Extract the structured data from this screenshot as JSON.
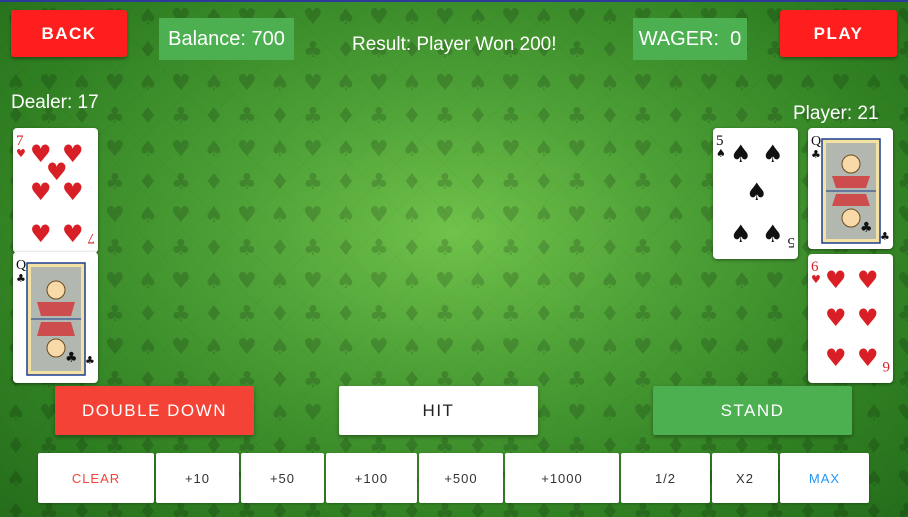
{
  "header": {
    "back_label": "BACK",
    "play_label": "PLAY",
    "balance_text": "Balance: 700",
    "result_text": "Result: Player Won 200!",
    "wager_text": "WAGER:  0"
  },
  "dealer": {
    "label": "Dealer: 17",
    "cards": [
      {
        "rank": "7",
        "suit": "hearts",
        "suit_symbol": "♥",
        "color": "#d81f26"
      },
      {
        "rank": "Q",
        "suit": "clubs",
        "suit_symbol": "♣",
        "color": "#111111"
      }
    ]
  },
  "player": {
    "label": "Player: 21",
    "cards": [
      {
        "rank": "5",
        "suit": "spades",
        "suit_symbol": "♠",
        "color": "#111111"
      },
      {
        "rank": "Q",
        "suit": "clubs",
        "suit_symbol": "♣",
        "color": "#111111"
      },
      {
        "rank": "6",
        "suit": "hearts",
        "suit_symbol": "♥",
        "color": "#d81f26"
      }
    ]
  },
  "actions": {
    "double_down_label": "DOUBLE DOWN",
    "hit_label": "HIT",
    "stand_label": "STAND"
  },
  "chips": [
    {
      "label": "CLEAR",
      "color": "#f44336"
    },
    {
      "label": "+10",
      "color": "#333333"
    },
    {
      "label": "+50",
      "color": "#333333"
    },
    {
      "label": "+100",
      "color": "#333333"
    },
    {
      "label": "+500",
      "color": "#333333"
    },
    {
      "label": "+1000",
      "color": "#333333"
    },
    {
      "label": "1/2",
      "color": "#333333"
    },
    {
      "label": "X2",
      "color": "#333333"
    },
    {
      "label": "MAX",
      "color": "#2196f3"
    }
  ],
  "colors": {
    "red_button": "#ff1e1e",
    "info_green": "#4caf50",
    "double_down": "#f44336",
    "stand": "#4caf50",
    "table_felt": "#3b8a2c"
  }
}
